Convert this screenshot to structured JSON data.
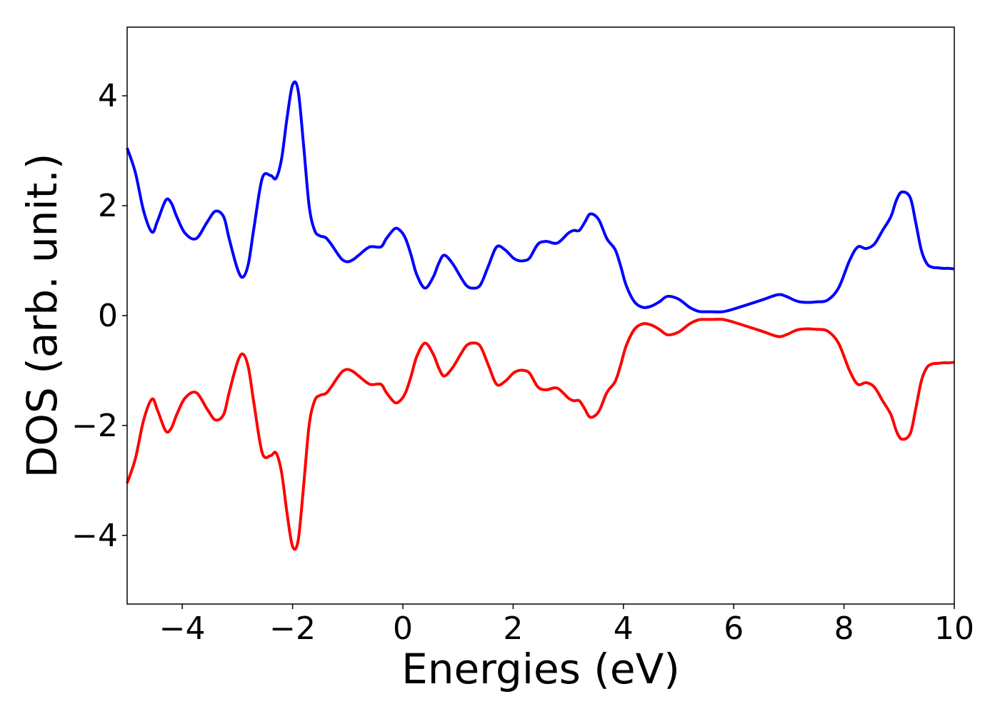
{
  "chart_data": {
    "type": "line",
    "xlabel": "Energies (eV)",
    "ylabel": "DOS (arb. unit.)",
    "xlim": [
      -5,
      10
    ],
    "ylim": [
      -5.25,
      5.25
    ],
    "grid": false,
    "legend": "none",
    "x_ticks": [
      -4,
      -2,
      0,
      2,
      4,
      6,
      8,
      10
    ],
    "y_ticks": [
      -4,
      -2,
      0,
      2,
      4
    ],
    "series": [
      {
        "color": "#0000ff",
        "x": [
          -5.0,
          -4.85,
          -4.7,
          -4.55,
          -4.45,
          -4.3,
          -4.2,
          -4.1,
          -3.95,
          -3.75,
          -3.55,
          -3.4,
          -3.25,
          -3.15,
          -3.0,
          -2.9,
          -2.8,
          -2.7,
          -2.55,
          -2.4,
          -2.3,
          -2.2,
          -2.1,
          -2.0,
          -1.9,
          -1.8,
          -1.7,
          -1.6,
          -1.5,
          -1.4,
          -1.3,
          -1.2,
          -1.1,
          -1.0,
          -0.9,
          -0.8,
          -0.6,
          -0.4,
          -0.3,
          -0.15,
          -0.05,
          0.05,
          0.15,
          0.25,
          0.4,
          0.55,
          0.65,
          0.75,
          0.9,
          1.05,
          1.15,
          1.25,
          1.4,
          1.55,
          1.7,
          1.85,
          2.0,
          2.1,
          2.2,
          2.3,
          2.45,
          2.6,
          2.8,
          3.0,
          3.1,
          3.2,
          3.3,
          3.4,
          3.55,
          3.7,
          3.85,
          3.95,
          4.05,
          4.2,
          4.35,
          4.5,
          4.65,
          4.8,
          5.0,
          5.2,
          5.35,
          5.45,
          5.6,
          5.8,
          6.0,
          6.5,
          6.8,
          6.95,
          7.1,
          7.2,
          7.35,
          7.5,
          7.7,
          7.9,
          8.1,
          8.25,
          8.4,
          8.55,
          8.7,
          8.85,
          8.95,
          9.05,
          9.2,
          9.3,
          9.4,
          9.5,
          9.6,
          9.7,
          9.8,
          9.9,
          10.0
        ],
        "values": [
          3.05,
          2.6,
          1.9,
          1.52,
          1.72,
          2.1,
          2.05,
          1.8,
          1.5,
          1.4,
          1.7,
          1.9,
          1.8,
          1.4,
          0.85,
          0.7,
          0.95,
          1.6,
          2.5,
          2.55,
          2.5,
          2.85,
          3.6,
          4.2,
          4.1,
          3.1,
          2.0,
          1.55,
          1.45,
          1.42,
          1.3,
          1.15,
          1.02,
          0.98,
          1.02,
          1.1,
          1.25,
          1.25,
          1.4,
          1.58,
          1.55,
          1.4,
          1.1,
          0.75,
          0.5,
          0.7,
          0.95,
          1.1,
          0.95,
          0.7,
          0.55,
          0.5,
          0.55,
          0.9,
          1.25,
          1.2,
          1.05,
          1.0,
          1.0,
          1.05,
          1.3,
          1.35,
          1.32,
          1.5,
          1.55,
          1.55,
          1.7,
          1.85,
          1.75,
          1.4,
          1.2,
          0.9,
          0.55,
          0.25,
          0.15,
          0.17,
          0.25,
          0.35,
          0.3,
          0.15,
          0.08,
          0.07,
          0.07,
          0.07,
          0.12,
          0.28,
          0.38,
          0.35,
          0.28,
          0.25,
          0.24,
          0.25,
          0.28,
          0.5,
          1.0,
          1.25,
          1.22,
          1.3,
          1.55,
          1.8,
          2.1,
          2.25,
          2.15,
          1.7,
          1.2,
          0.95,
          0.88,
          0.87,
          0.86,
          0.86,
          0.85
        ]
      },
      {
        "color": "#ff0000",
        "x": [
          -5.0,
          -4.85,
          -4.7,
          -4.55,
          -4.45,
          -4.3,
          -4.2,
          -4.1,
          -3.95,
          -3.75,
          -3.55,
          -3.4,
          -3.25,
          -3.15,
          -3.0,
          -2.9,
          -2.8,
          -2.7,
          -2.55,
          -2.4,
          -2.3,
          -2.2,
          -2.1,
          -2.0,
          -1.9,
          -1.8,
          -1.7,
          -1.6,
          -1.5,
          -1.4,
          -1.3,
          -1.2,
          -1.1,
          -1.0,
          -0.9,
          -0.8,
          -0.6,
          -0.4,
          -0.3,
          -0.15,
          -0.05,
          0.05,
          0.15,
          0.25,
          0.4,
          0.55,
          0.65,
          0.75,
          0.9,
          1.05,
          1.15,
          1.25,
          1.4,
          1.55,
          1.7,
          1.85,
          2.0,
          2.1,
          2.2,
          2.3,
          2.45,
          2.6,
          2.8,
          3.0,
          3.1,
          3.2,
          3.3,
          3.4,
          3.55,
          3.7,
          3.85,
          3.95,
          4.05,
          4.2,
          4.35,
          4.5,
          4.65,
          4.8,
          5.0,
          5.2,
          5.35,
          5.45,
          5.6,
          5.8,
          6.0,
          6.5,
          6.8,
          6.95,
          7.1,
          7.2,
          7.35,
          7.5,
          7.7,
          7.9,
          8.1,
          8.25,
          8.4,
          8.55,
          8.7,
          8.85,
          8.95,
          9.05,
          9.2,
          9.3,
          9.4,
          9.5,
          9.6,
          9.7,
          9.8,
          9.9,
          10.0
        ],
        "values": [
          -3.05,
          -2.6,
          -1.9,
          -1.52,
          -1.72,
          -2.1,
          -2.05,
          -1.8,
          -1.5,
          -1.4,
          -1.7,
          -1.9,
          -1.8,
          -1.4,
          -0.85,
          -0.7,
          -0.95,
          -1.6,
          -2.5,
          -2.55,
          -2.5,
          -2.85,
          -3.6,
          -4.2,
          -4.1,
          -3.1,
          -2.0,
          -1.55,
          -1.45,
          -1.42,
          -1.3,
          -1.15,
          -1.02,
          -0.98,
          -1.02,
          -1.1,
          -1.25,
          -1.25,
          -1.4,
          -1.58,
          -1.55,
          -1.4,
          -1.1,
          -0.75,
          -0.5,
          -0.7,
          -0.95,
          -1.1,
          -0.95,
          -0.7,
          -0.55,
          -0.5,
          -0.55,
          -0.9,
          -1.25,
          -1.2,
          -1.05,
          -1.0,
          -1.0,
          -1.05,
          -1.3,
          -1.35,
          -1.32,
          -1.5,
          -1.55,
          -1.55,
          -1.7,
          -1.85,
          -1.75,
          -1.4,
          -1.2,
          -0.9,
          -0.55,
          -0.25,
          -0.15,
          -0.17,
          -0.25,
          -0.35,
          -0.3,
          -0.15,
          -0.08,
          -0.07,
          -0.07,
          -0.07,
          -0.12,
          -0.28,
          -0.38,
          -0.35,
          -0.28,
          -0.25,
          -0.24,
          -0.25,
          -0.28,
          -0.5,
          -1.0,
          -1.25,
          -1.22,
          -1.3,
          -1.55,
          -1.8,
          -2.1,
          -2.25,
          -2.15,
          -1.7,
          -1.2,
          -0.95,
          -0.88,
          -0.87,
          -0.86,
          -0.86,
          -0.85
        ]
      }
    ]
  }
}
